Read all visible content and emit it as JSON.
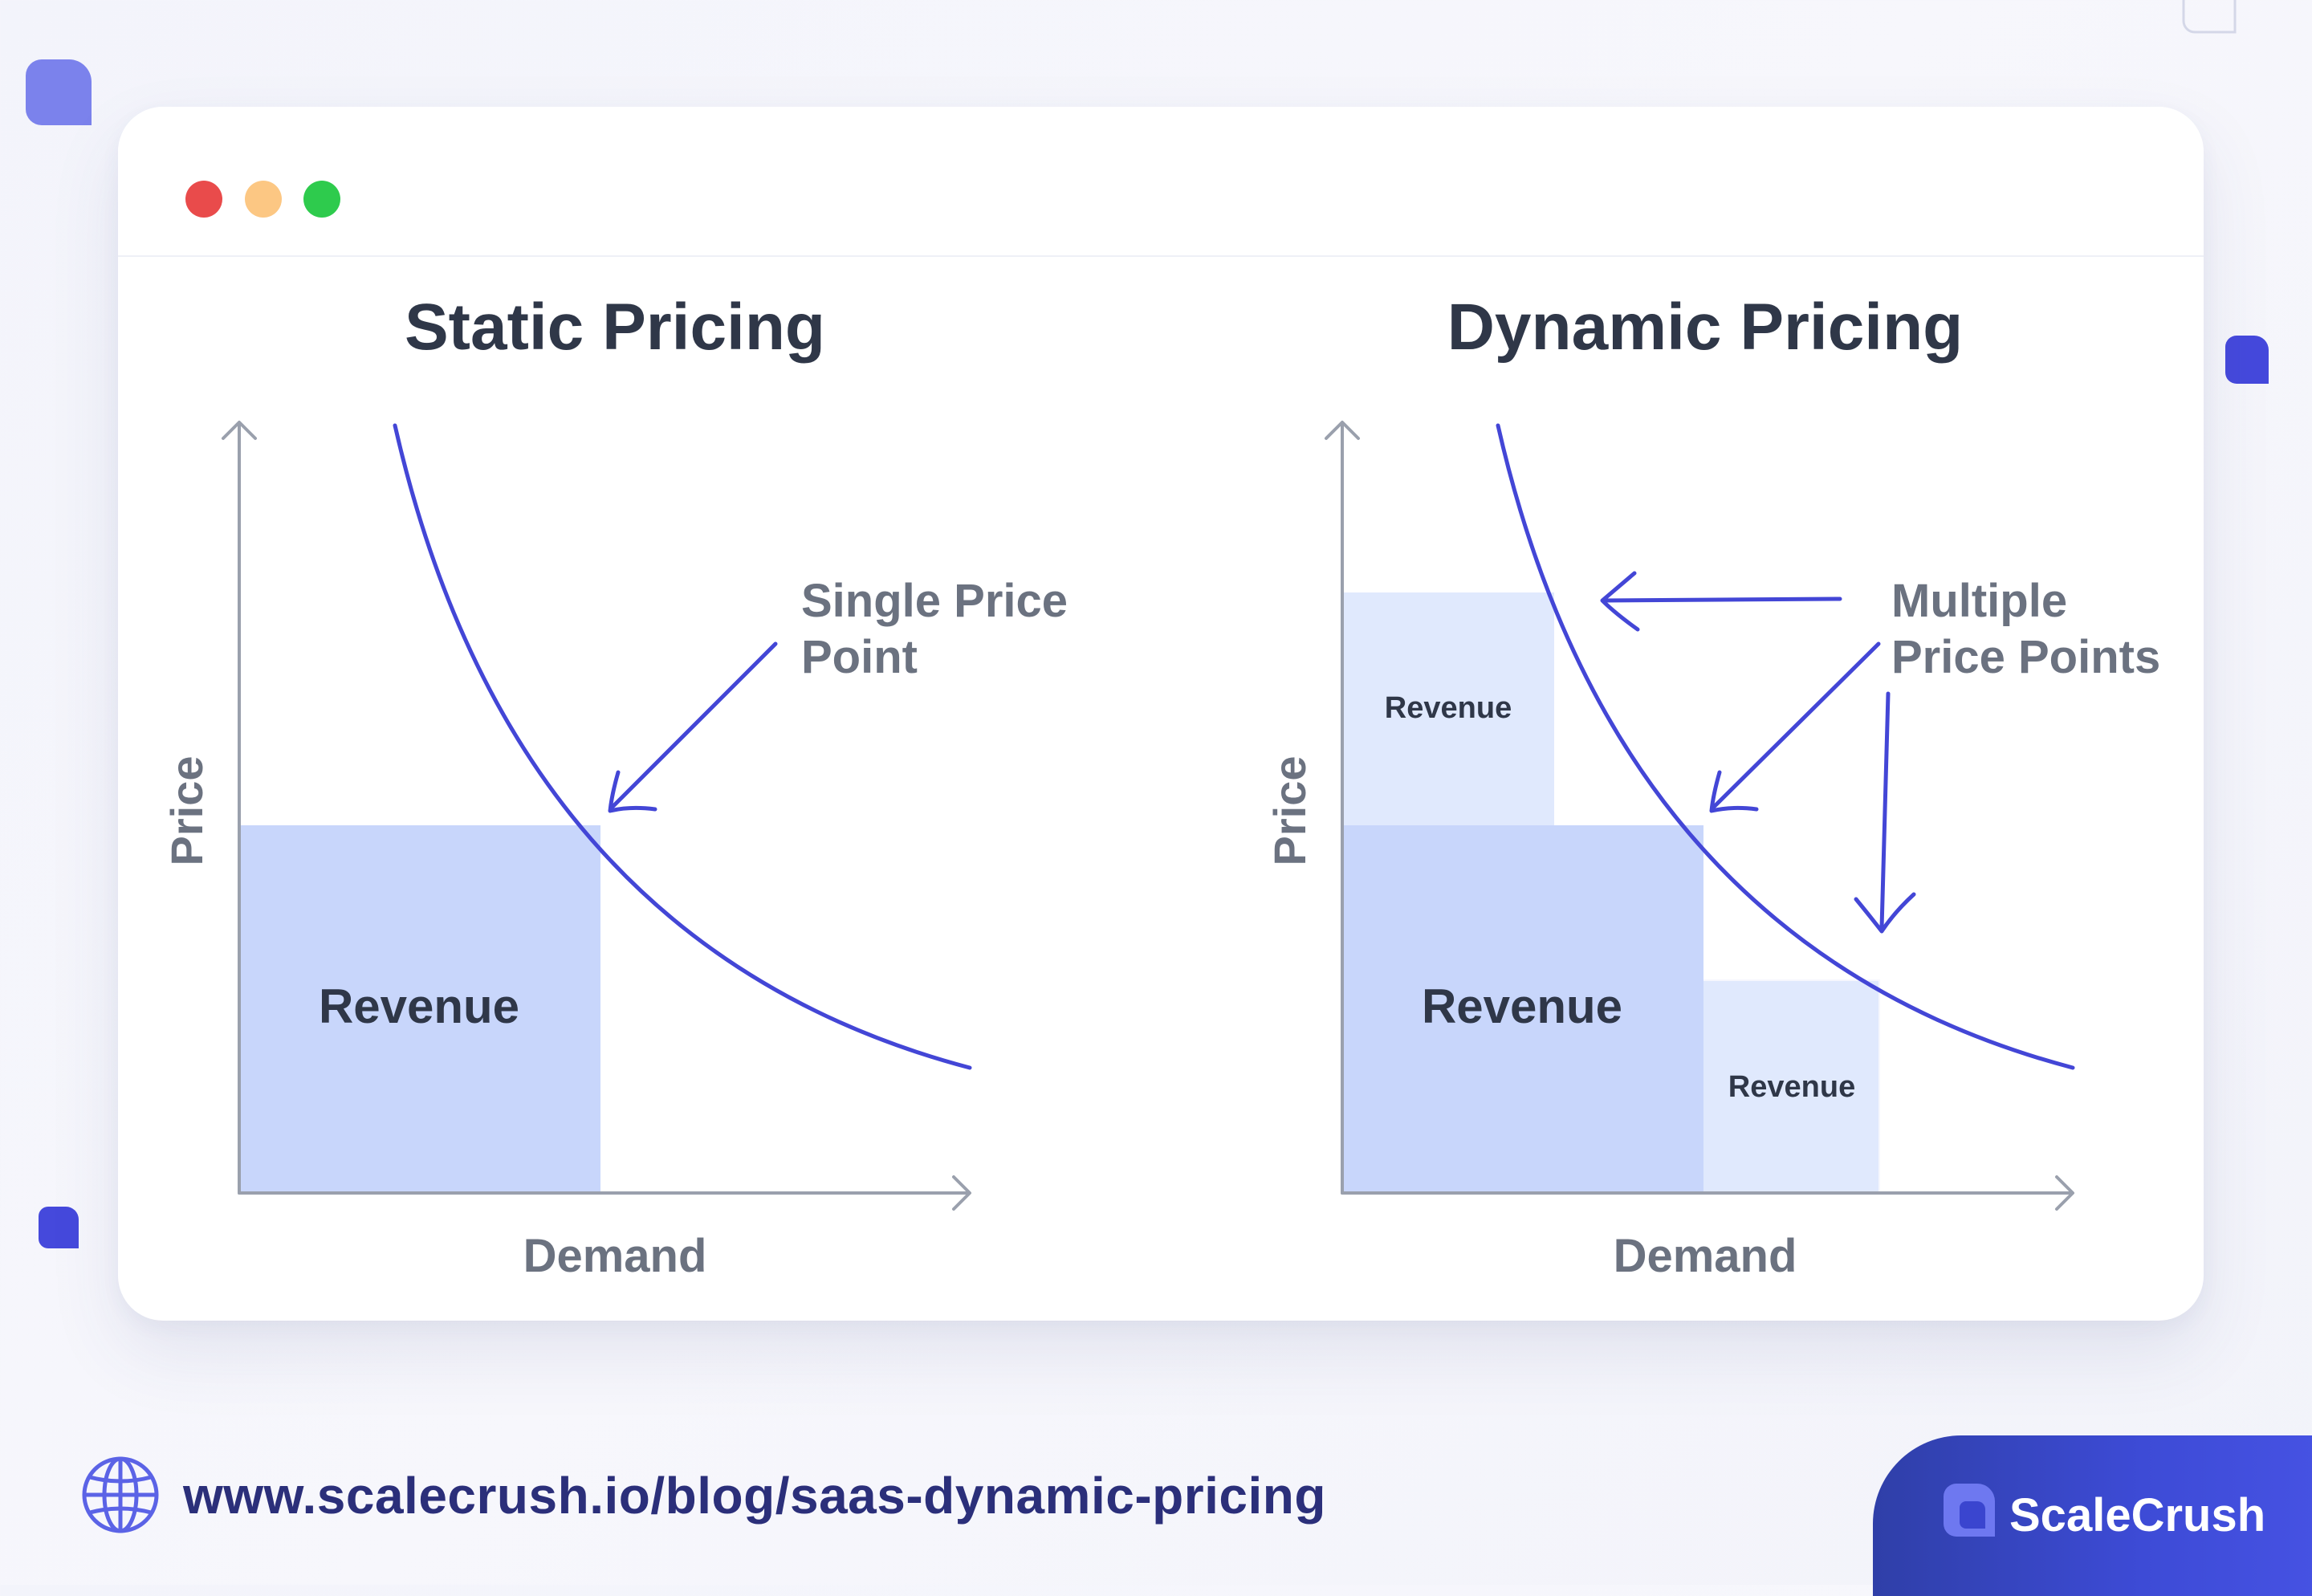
{
  "window": {
    "controls": [
      "close",
      "minimize",
      "maximize"
    ]
  },
  "static_diagram": {
    "title": "Static Pricing",
    "y_label": "Price",
    "x_label": "Demand",
    "region_label": "Revenue",
    "annotation_line1": "Single Price",
    "annotation_line2": "Point"
  },
  "dynamic_diagram": {
    "title": "Dynamic Pricing",
    "y_label": "Price",
    "x_label": "Demand",
    "region_label_main": "Revenue",
    "region_label_upper": "Revenue",
    "region_label_lower": "Revenue",
    "annotation_line1": "Multiple",
    "annotation_line2": "Price Points"
  },
  "footer": {
    "url": "www.scalecrush.io/blog/saas-dynamic-pricing",
    "brand": "ScaleCrush"
  },
  "colors": {
    "curve": "#4346d6",
    "axis": "#9aa0ad",
    "revenue_main": "#c8d6fb",
    "revenue_light": "#e0e9fd",
    "title": "#2f3748",
    "label": "#6b7280",
    "accent": "#4652e3"
  }
}
